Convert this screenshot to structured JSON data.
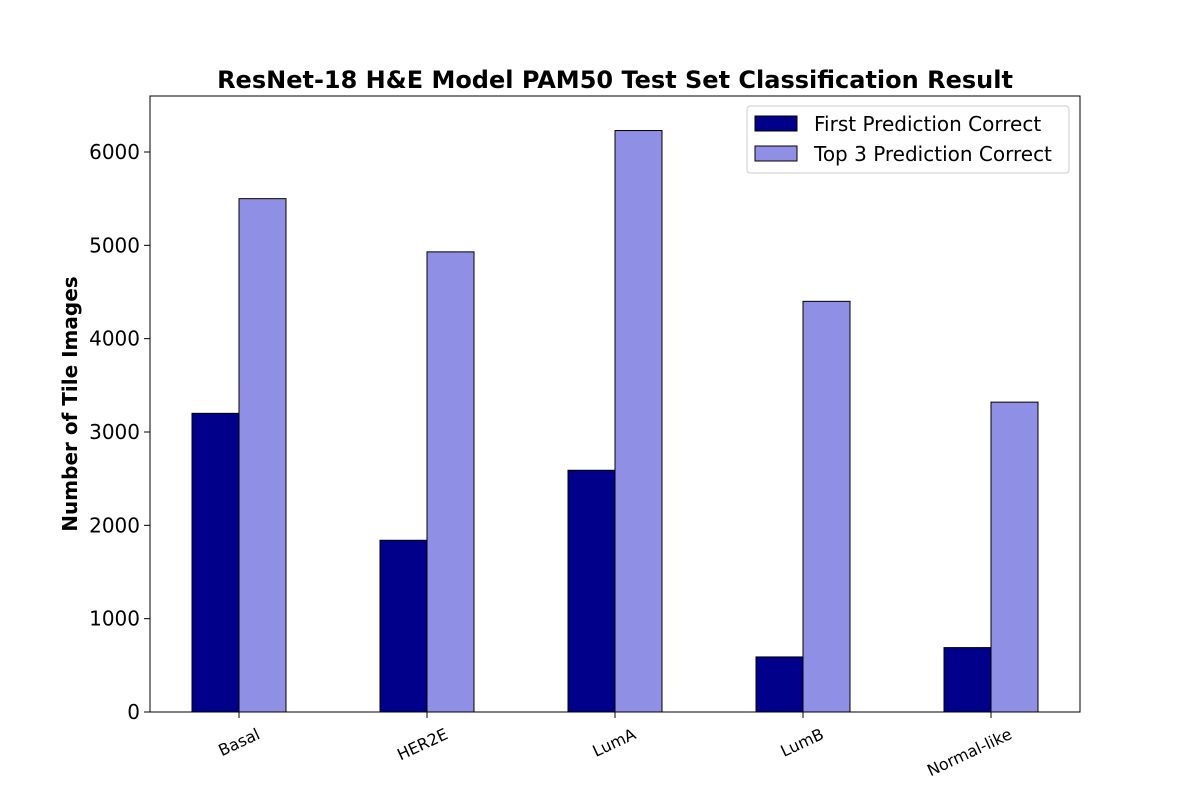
{
  "chart_data": {
    "type": "bar",
    "title": "ResNet-18 H&E Model PAM50 Test Set Classification Result",
    "xlabel": "",
    "ylabel": "Number of Tile Images",
    "categories": [
      "Basal",
      "HER2E",
      "LumA",
      "LumB",
      "Normal-like"
    ],
    "series": [
      {
        "name": "First Prediction Correct",
        "values": [
          3200,
          1840,
          2590,
          590,
          690
        ],
        "color": "#00008b"
      },
      {
        "name": "Top 3 Prediction Correct",
        "values": [
          5500,
          4930,
          6230,
          4400,
          3320
        ],
        "color": "#8f8fe6"
      }
    ],
    "ylim": [
      0,
      6600
    ],
    "yticks": [
      0,
      1000,
      2000,
      3000,
      4000,
      5000,
      6000
    ],
    "grid": false,
    "legend": "top-right"
  }
}
